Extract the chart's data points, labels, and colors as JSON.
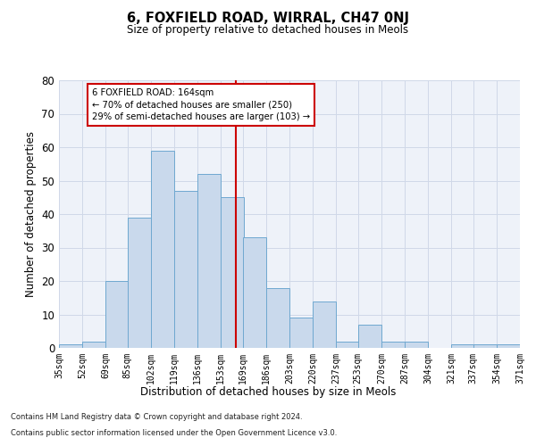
{
  "title": "6, FOXFIELD ROAD, WIRRAL, CH47 0NJ",
  "subtitle": "Size of property relative to detached houses in Meols",
  "xlabel": "Distribution of detached houses by size in Meols",
  "ylabel": "Number of detached properties",
  "bins": [
    35,
    52,
    69,
    85,
    102,
    119,
    136,
    153,
    169,
    186,
    203,
    220,
    237,
    253,
    270,
    287,
    304,
    321,
    337,
    354,
    371
  ],
  "bar_heights": [
    1,
    2,
    20,
    39,
    59,
    47,
    52,
    45,
    33,
    18,
    9,
    14,
    2,
    7,
    2,
    2,
    0,
    1,
    1,
    1
  ],
  "bar_color": "#c9d9ec",
  "bar_edge_color": "#6fa8d0",
  "vline_x": 164,
  "vline_color": "#cc0000",
  "ylim": [
    0,
    80
  ],
  "yticks": [
    0,
    10,
    20,
    30,
    40,
    50,
    60,
    70,
    80
  ],
  "annotation_text": "6 FOXFIELD ROAD: 164sqm\n← 70% of detached houses are smaller (250)\n29% of semi-detached houses are larger (103) →",
  "annotation_box_color": "#ffffff",
  "annotation_box_edge": "#cc0000",
  "footnote1": "Contains HM Land Registry data © Crown copyright and database right 2024.",
  "footnote2": "Contains public sector information licensed under the Open Government Licence v3.0.",
  "grid_color": "#d0d8e8",
  "background_color": "#eef2f9"
}
